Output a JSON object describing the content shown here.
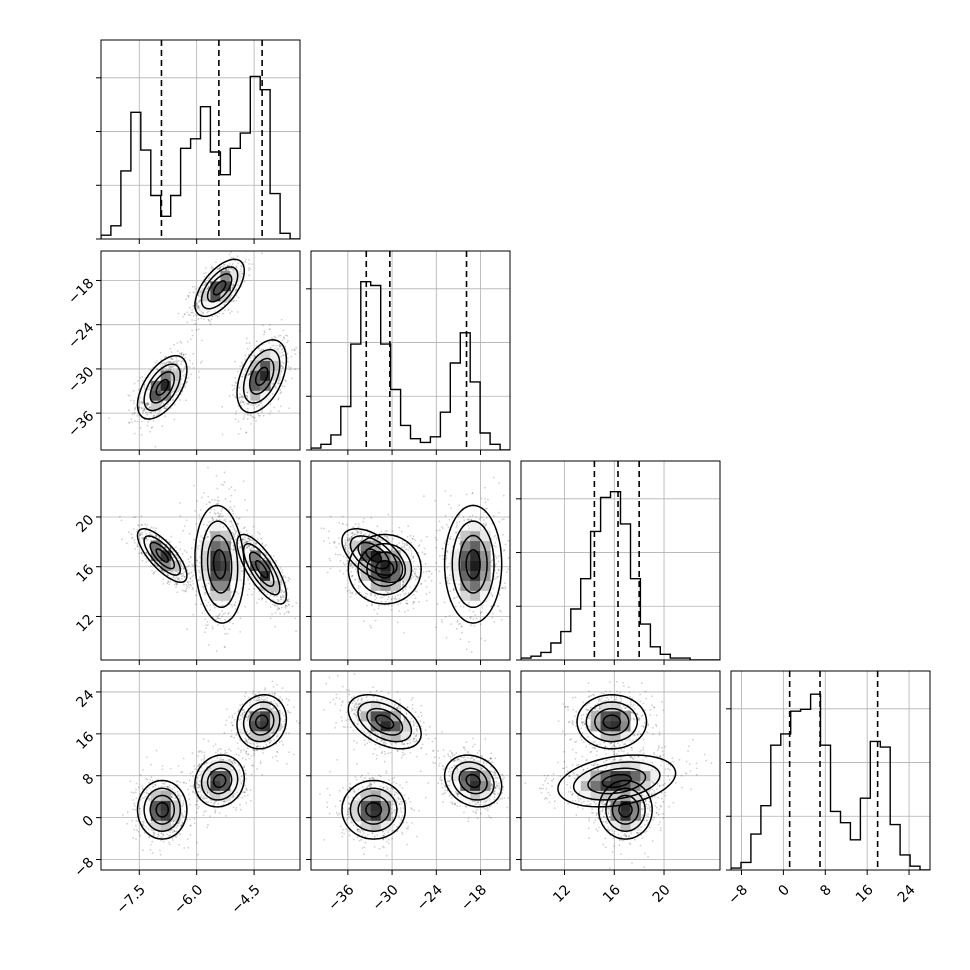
{
  "chart_data": {
    "type": "corner",
    "grid": true,
    "params": [
      {
        "ticks": [
          -7.5,
          -6.0,
          -4.5
        ],
        "tick_labels": [
          "−7.5",
          "−6.0",
          "−4.5"
        ],
        "range": [
          -8.5,
          -3.3
        ],
        "quantiles": [
          -6.92,
          -5.42,
          -4.29
        ],
        "hist_edges_start": -8.5,
        "hist_bin": 0.26,
        "hist": [
          0.02,
          0.07,
          0.36,
          0.67,
          0.47,
          0.23,
          0.12,
          0.23,
          0.48,
          0.53,
          0.7,
          0.46,
          0.34,
          0.48,
          0.56,
          0.86,
          0.79,
          0.24,
          0.03,
          0
        ]
      },
      {
        "ticks": [
          -36,
          -30,
          -24,
          -18
        ],
        "tick_labels": [
          "−36",
          "−30",
          "−24",
          "−18"
        ],
        "range": [
          -41,
          -14
        ],
        "quantiles": [
          -33.5,
          -30.3,
          -19.9
        ],
        "hist_edges_start": -41,
        "hist_bin": 1.35,
        "hist": [
          0.01,
          0.03,
          0.08,
          0.23,
          0.56,
          0.89,
          0.87,
          0.56,
          0.32,
          0.13,
          0.06,
          0.04,
          0.07,
          0.2,
          0.46,
          0.62,
          0.36,
          0.09,
          0.03,
          0
        ]
      },
      {
        "ticks": [
          12,
          16,
          20
        ],
        "tick_labels": [
          "12",
          "16",
          "20"
        ],
        "range": [
          8.5,
          24.5
        ],
        "quantiles": [
          14.4,
          16.3,
          18.0
        ],
        "hist_edges_start": 8.5,
        "hist_bin": 0.8,
        "hist": [
          0.01,
          0.02,
          0.04,
          0.09,
          0.15,
          0.27,
          0.43,
          0.68,
          0.86,
          0.89,
          0.72,
          0.43,
          0.19,
          0.07,
          0.03,
          0.01,
          0.01,
          0,
          0,
          0
        ]
      },
      {
        "ticks": [
          -8,
          0,
          8,
          16,
          24
        ],
        "tick_labels": [
          "−8",
          "0",
          "8",
          "16",
          "24"
        ],
        "range": [
          -10,
          28
        ],
        "quantiles": [
          1.2,
          7.0,
          18.0
        ],
        "hist_edges_start": -10,
        "hist_bin": 1.9,
        "hist": [
          0.01,
          0.04,
          0.19,
          0.34,
          0.66,
          0.72,
          0.84,
          0.85,
          0.93,
          0.66,
          0.31,
          0.25,
          0.16,
          0.38,
          0.68,
          0.65,
          0.24,
          0.08,
          0.02,
          0
        ]
      }
    ],
    "clusters": [
      {
        "mean": [
          -6.9,
          -32.5,
          16.9,
          1.5
        ],
        "sd": [
          0.3,
          2.0,
          1.0,
          2.6
        ],
        "corr": {
          "0-1": 0.55,
          "0-2": -0.75,
          "1-2": -0.55,
          "0-3": 0.0,
          "1-3": 0.0,
          "2-3": 0.0
        }
      },
      {
        "mean": [
          -5.4,
          -19.0,
          16.2,
          7.0
        ],
        "sd": [
          0.3,
          1.8,
          2.2,
          2.3
        ],
        "corr": {
          "0-1": 0.6,
          "0-2": -0.1,
          "1-2": 0.0,
          "0-3": 0.1,
          "1-3": -0.2,
          "2-3": 0.3
        }
      },
      {
        "mean": [
          -4.3,
          -31.0,
          15.8,
          18.3
        ],
        "sd": [
          0.3,
          2.3,
          1.3,
          2.4
        ],
        "corr": {
          "0-1": 0.45,
          "0-2": -0.75,
          "1-2": 0.0,
          "0-3": 0.1,
          "1-3": -0.45,
          "2-3": 0.0
        }
      }
    ],
    "contour_levels": [
      0.5,
      1.0,
      1.5
    ],
    "hist2d_bins": 20
  }
}
